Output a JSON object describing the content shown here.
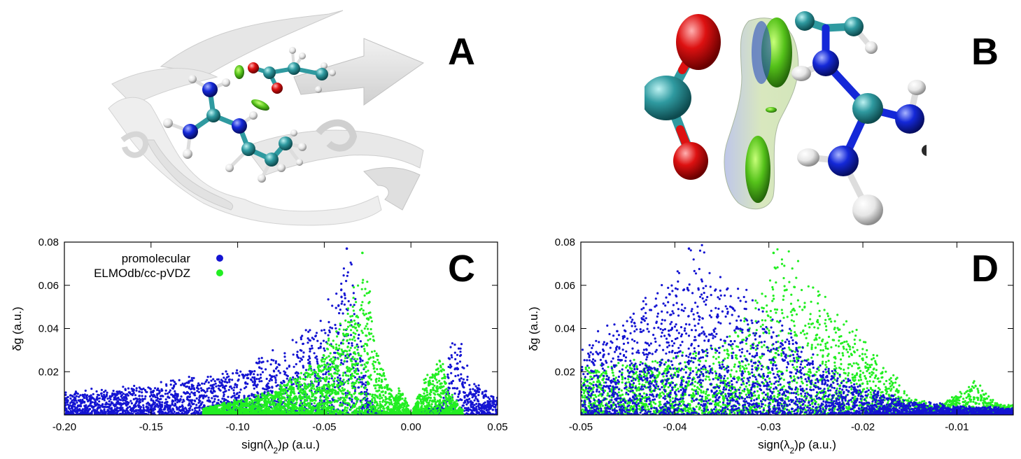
{
  "panels": {
    "a_label": "A",
    "b_label": "B",
    "c_label": "C",
    "d_label": "D"
  },
  "colors": {
    "promolecular": "#1414d2",
    "elmodb": "#22ee22",
    "carbon": "#2f9aa0",
    "oxygen": "#dd1111",
    "nitrogen": "#1428d8",
    "hydrogen": "#e6e6e6",
    "protein_ribbon": "#d4d4d4"
  },
  "chart_data": [
    {
      "panel": "C",
      "type": "scatter",
      "title": "",
      "xlabel_main": "sign(λ",
      "xlabel_sub": "2",
      "xlabel_rest": ")ρ (a.u.)",
      "ylabel": "δg (a.u.)",
      "xlim": [
        -0.2,
        0.05
      ],
      "ylim": [
        0.0,
        0.08
      ],
      "xticks": [
        -0.2,
        -0.15,
        -0.1,
        -0.05,
        0.0,
        0.05
      ],
      "xtick_labels": [
        "-0.20",
        "-0.15",
        "-0.10",
        "-0.05",
        "0.00",
        "0.05"
      ],
      "yticks": [
        0.02,
        0.04,
        0.06,
        0.08
      ],
      "ytick_labels": [
        "0.02",
        "0.04",
        "0.06",
        "0.08"
      ],
      "legend_position": "top-left",
      "series": [
        {
          "name": "promolecular",
          "key": "promolecular",
          "profile": [
            [
              -0.2,
              0.01
            ],
            [
              -0.15,
              0.013
            ],
            [
              -0.1,
              0.02
            ],
            [
              -0.07,
              0.03
            ],
            [
              -0.05,
              0.045
            ],
            [
              -0.04,
              0.06
            ],
            [
              -0.035,
              0.077
            ],
            [
              -0.03,
              0.04
            ],
            [
              -0.025,
              0.01
            ],
            [
              -0.02,
              0.002
            ],
            [
              0.0,
              0.0
            ],
            [
              0.018,
              0.005
            ],
            [
              0.022,
              0.03
            ],
            [
              0.028,
              0.034
            ],
            [
              0.035,
              0.015
            ],
            [
              0.05,
              0.008
            ]
          ],
          "peak_x": -0.037,
          "peak_y": 0.077
        },
        {
          "name": "ELMOdb/cc-pVDZ",
          "key": "elmodb",
          "profile": [
            [
              -0.12,
              0.003
            ],
            [
              -0.08,
              0.01
            ],
            [
              -0.06,
              0.02
            ],
            [
              -0.045,
              0.035
            ],
            [
              -0.035,
              0.05
            ],
            [
              -0.03,
              0.065
            ],
            [
              -0.028,
              0.075
            ],
            [
              -0.02,
              0.03
            ],
            [
              -0.01,
              0.008
            ],
            [
              -0.005,
              0.014
            ],
            [
              0.0,
              0.0
            ],
            [
              0.005,
              0.01
            ],
            [
              0.01,
              0.018
            ],
            [
              0.018,
              0.028
            ],
            [
              0.022,
              0.01
            ],
            [
              0.03,
              0.002
            ]
          ],
          "peak_x": -0.028,
          "peak_y": 0.075
        }
      ]
    },
    {
      "panel": "D",
      "type": "scatter",
      "title": "",
      "xlabel_main": "sign(λ",
      "xlabel_sub": "2",
      "xlabel_rest": ")ρ (a.u.)",
      "ylabel": "δg (a.u.)",
      "xlim": [
        -0.05,
        -0.004
      ],
      "ylim": [
        0.0,
        0.08
      ],
      "xticks": [
        -0.05,
        -0.04,
        -0.03,
        -0.02,
        -0.01
      ],
      "xtick_labels": [
        "-0.05",
        "-0.04",
        "-0.03",
        "-0.02",
        "-0.01"
      ],
      "yticks": [
        0.02,
        0.04,
        0.06,
        0.08
      ],
      "ytick_labels": [
        "0.02",
        "0.04",
        "0.06",
        "0.08"
      ],
      "series": [
        {
          "name": "promolecular",
          "key": "promolecular",
          "profile": [
            [
              -0.05,
              0.03
            ],
            [
              -0.045,
              0.045
            ],
            [
              -0.04,
              0.06
            ],
            [
              -0.038,
              0.077
            ],
            [
              -0.035,
              0.06
            ],
            [
              -0.03,
              0.045
            ],
            [
              -0.025,
              0.025
            ],
            [
              -0.02,
              0.012
            ],
            [
              -0.015,
              0.006
            ],
            [
              -0.01,
              0.004
            ],
            [
              -0.004,
              0.003
            ]
          ],
          "peak_x": -0.0385,
          "peak_y": 0.077
        },
        {
          "name": "ELMOdb/cc-pVDZ",
          "key": "elmodb",
          "profile": [
            [
              -0.05,
              0.02
            ],
            [
              -0.04,
              0.025
            ],
            [
              -0.035,
              0.03
            ],
            [
              -0.03,
              0.06
            ],
            [
              -0.029,
              0.075
            ],
            [
              -0.025,
              0.055
            ],
            [
              -0.02,
              0.035
            ],
            [
              -0.015,
              0.008
            ],
            [
              -0.012,
              0.004
            ],
            [
              -0.008,
              0.015
            ],
            [
              -0.006,
              0.006
            ],
            [
              -0.004,
              0.004
            ]
          ],
          "peak_x": -0.0295,
          "peak_y": 0.075
        }
      ]
    }
  ]
}
